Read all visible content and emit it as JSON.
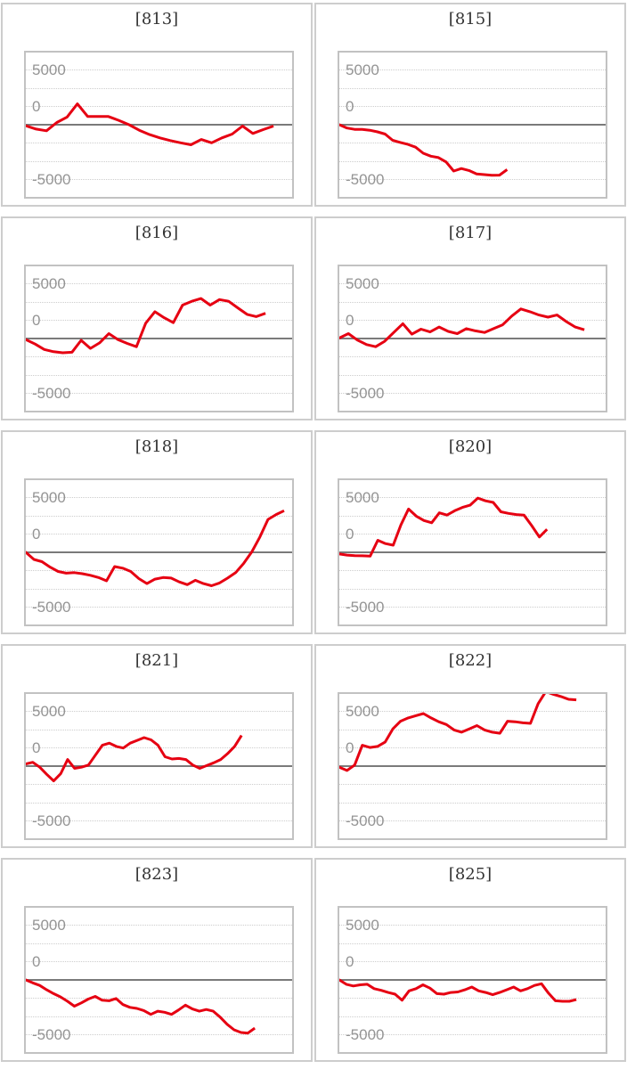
{
  "page": {
    "background": "#ffffff"
  },
  "colors": {
    "series_red": "#e60012",
    "zero_line": "#7a7a7a",
    "gridline": "#cdcdcd",
    "plot_border": "#c2c2c2",
    "card_border": "#cdcdcd",
    "axis_label": "#949494",
    "title_text": "#333333"
  },
  "axis": {
    "tick_labels": [
      "5000",
      "0",
      "-5000"
    ],
    "gridline_count": 7,
    "gridline_step_value": 1667,
    "zero_line_solid": true
  },
  "chart_data": [
    {
      "type": "line",
      "title": "[813]",
      "machine_id": "813",
      "ylim": [
        -6500,
        6500
      ],
      "ytick_labels": [
        "5000",
        "0",
        "-5000"
      ],
      "x_fill_fraction": 0.93,
      "values": [
        -100,
        -400,
        -550,
        200,
        700,
        1900,
        750,
        750,
        750,
        400,
        0,
        -500,
        -900,
        -1200,
        -1450,
        -1650,
        -1830,
        -1350,
        -1650,
        -1200,
        -850,
        -120,
        -800,
        -450,
        -120
      ]
    },
    {
      "type": "line",
      "title": "[815]",
      "machine_id": "815",
      "ylim": [
        -6500,
        6500
      ],
      "ytick_labels": [
        "5000",
        "0",
        "-5000"
      ],
      "x_fill_fraction": 0.63,
      "values": [
        0,
        -300,
        -420,
        -430,
        -500,
        -650,
        -850,
        -1420,
        -1620,
        -1800,
        -2050,
        -2600,
        -2870,
        -3000,
        -3400,
        -4230,
        -4000,
        -4180,
        -4500,
        -4550,
        -4620,
        -4600,
        -4100
      ]
    },
    {
      "type": "line",
      "title": "[816]",
      "machine_id": "816",
      "ylim": [
        -6500,
        6500
      ],
      "ytick_labels": [
        "5000",
        "0",
        "-5000"
      ],
      "x_fill_fraction": 0.9,
      "values": [
        -100,
        -500,
        -1000,
        -1200,
        -1300,
        -1250,
        -160,
        -900,
        -400,
        450,
        -100,
        -450,
        -750,
        1400,
        2450,
        1900,
        1450,
        3050,
        3400,
        3650,
        3050,
        3550,
        3400,
        2800,
        2200,
        2000,
        2300
      ]
    },
    {
      "type": "line",
      "title": "[817]",
      "machine_id": "817",
      "ylim": [
        -6500,
        6500
      ],
      "ytick_labels": [
        "5000",
        "0",
        "-5000"
      ],
      "x_fill_fraction": 0.92,
      "values": [
        50,
        450,
        -150,
        -550,
        -750,
        -250,
        550,
        1350,
        400,
        850,
        600,
        1050,
        650,
        450,
        900,
        700,
        550,
        900,
        1250,
        2050,
        2700,
        2450,
        2150,
        1950,
        2150,
        1550,
        1050,
        800
      ]
    },
    {
      "type": "line",
      "title": "[818]",
      "machine_id": "818",
      "ylim": [
        -6500,
        6500
      ],
      "ytick_labels": [
        "5000",
        "0",
        "-5000"
      ],
      "x_fill_fraction": 0.97,
      "values": [
        0,
        -650,
        -850,
        -1350,
        -1750,
        -1900,
        -1850,
        -1950,
        -2100,
        -2300,
        -2600,
        -1300,
        -1450,
        -1750,
        -2400,
        -2850,
        -2450,
        -2300,
        -2350,
        -2700,
        -2950,
        -2550,
        -2850,
        -3050,
        -2800,
        -2350,
        -1850,
        -1000,
        50,
        1400,
        3000,
        3450,
        3800
      ]
    },
    {
      "type": "line",
      "title": "[820]",
      "machine_id": "820",
      "ylim": [
        -6500,
        6500
      ],
      "ytick_labels": [
        "5000",
        "0",
        "-5000"
      ],
      "x_fill_fraction": 0.78,
      "values": [
        -150,
        -250,
        -300,
        -320,
        -350,
        1100,
        800,
        650,
        2500,
        3950,
        3300,
        2900,
        2700,
        3600,
        3400,
        3800,
        4100,
        4300,
        4950,
        4700,
        4550,
        3700,
        3550,
        3450,
        3400,
        2450,
        1400,
        2100
      ]
    },
    {
      "type": "line",
      "title": "[821]",
      "machine_id": "821",
      "ylim": [
        -6500,
        6500
      ],
      "ytick_labels": [
        "5000",
        "0",
        "-5000"
      ],
      "x_fill_fraction": 0.81,
      "values": [
        200,
        350,
        -100,
        -750,
        -1350,
        -700,
        600,
        -200,
        -100,
        100,
        1000,
        1900,
        2100,
        1800,
        1650,
        2100,
        2350,
        2600,
        2400,
        1900,
        850,
        650,
        700,
        600,
        100,
        -200,
        50,
        300,
        600,
        1150,
        1800,
        2800
      ]
    },
    {
      "type": "line",
      "title": "[822]",
      "machine_id": "822",
      "ylim": [
        -6500,
        6500
      ],
      "ytick_labels": [
        "5000",
        "0",
        "-5000"
      ],
      "x_fill_fraction": 0.89,
      "values": [
        -100,
        -400,
        100,
        1900,
        1700,
        1800,
        2200,
        3400,
        4100,
        4400,
        4600,
        4800,
        4400,
        4050,
        3800,
        3300,
        3100,
        3400,
        3700,
        3300,
        3100,
        3000,
        4100,
        4050,
        3950,
        3900,
        5700,
        6800,
        6550,
        6350,
        6100,
        6050
      ]
    },
    {
      "type": "line",
      "title": "[823]",
      "machine_id": "823",
      "ylim": [
        -6500,
        6500
      ],
      "ytick_labels": [
        "5000",
        "0",
        "-5000"
      ],
      "x_fill_fraction": 0.86,
      "values": [
        0,
        -270,
        -500,
        -900,
        -1250,
        -1550,
        -1950,
        -2400,
        -2100,
        -1750,
        -1500,
        -1850,
        -1900,
        -1700,
        -2250,
        -2500,
        -2600,
        -2800,
        -3150,
        -2850,
        -2950,
        -3150,
        -2750,
        -2300,
        -2650,
        -2850,
        -2700,
        -2850,
        -3400,
        -4050,
        -4550,
        -4800,
        -4850,
        -4400
      ]
    },
    {
      "type": "line",
      "title": "[825]",
      "machine_id": "825",
      "ylim": [
        -6500,
        6500
      ],
      "ytick_labels": [
        "5000",
        "0",
        "-5000"
      ],
      "x_fill_fraction": 0.89,
      "values": [
        0,
        -400,
        -550,
        -450,
        -400,
        -800,
        -950,
        -1150,
        -1300,
        -1850,
        -1000,
        -800,
        -450,
        -750,
        -1250,
        -1300,
        -1150,
        -1100,
        -900,
        -650,
        -1000,
        -1150,
        -1350,
        -1150,
        -900,
        -650,
        -1000,
        -800,
        -500,
        -350,
        -1200,
        -1900,
        -1950,
        -1950,
        -1800
      ]
    }
  ]
}
